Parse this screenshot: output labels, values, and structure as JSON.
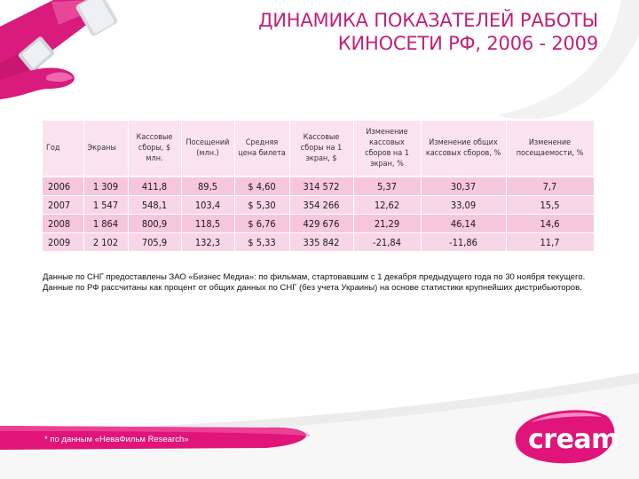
{
  "title": {
    "line1": "ДИНАМИКА ПОКАЗАТЕЛЕЙ РАБОТЫ",
    "line2": "КИНОСЕТИ РФ, 2006 - 2009"
  },
  "table": {
    "headers": [
      "Год",
      "Экраны",
      "Кассовые сборы, $ млн.",
      "Посещений (млн.)",
      "Средняя цена билета",
      "Кассовые сборы на 1 экран, $",
      "Изменение кассовых сборов на 1 экран, %",
      "Изменение общих кассовых сборов, %",
      "Изменение посещаемости, %"
    ],
    "rows": [
      [
        "2006",
        "1 309",
        "411,8",
        "89,5",
        "$ 4,60",
        "314 572",
        "5,37",
        "30,37",
        "7,7"
      ],
      [
        "2007",
        "1 547",
        "548,1",
        "103,4",
        "$ 5,30",
        "354 266",
        "12,62",
        "33,09",
        "15,5"
      ],
      [
        "2008",
        "1 864",
        "800,9",
        "118,5",
        "$ 6,76",
        "429 676",
        "21,29",
        "46,14",
        "14,6"
      ],
      [
        "2009",
        "2 102",
        "705,9",
        "132,3",
        "$ 5,33",
        "335 842",
        "-21,84",
        "-11,86",
        "11,7"
      ]
    ]
  },
  "notes": {
    "p1": "Данные по СНГ предоставлены ЗАО «Бизнес Медиа»: по фильмам, стартовавшим с 1 декабря предыдущего года по 30 ноября текущего.",
    "p2": "Данные по РФ рассчитаны как процент от общих данных по СНГ (без учета Украины) на основе статистики крупнейших дистрибьюторов."
  },
  "footnote": "* по данным «НеваФильм Research»",
  "logo": {
    "text": "cream"
  },
  "colors": {
    "accent": "#c22079",
    "header_bg": "#fbe2ef",
    "row_bg": "#f6c6dd",
    "ribbon": "#e0147a"
  }
}
